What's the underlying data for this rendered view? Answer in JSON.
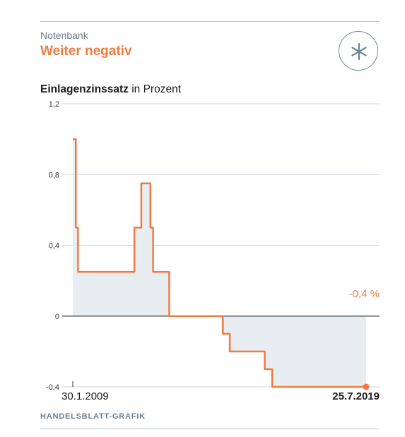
{
  "header": {
    "kicker": "Notenbank",
    "headline": "Weiter negativ",
    "subtitle_bold": "Einlagenzinssatz",
    "subtitle_rest": " in Prozent"
  },
  "icons": {
    "action": "asterisk-icon"
  },
  "footer": {
    "source": "HANDELSBLATT-GRAFIK"
  },
  "colors": {
    "line": "#ef7b42",
    "area": "#e8edf1",
    "grid": "#cfd6db",
    "zero": "#333333",
    "rule": "#b8c4cc",
    "kicker": "#6d7f8a"
  },
  "chart_data": {
    "type": "area",
    "title": "Einlagenzinssatz in Prozent",
    "y_ticks": [
      "1,2",
      "0,8",
      "0,4",
      "0",
      "-0,4"
    ],
    "y_tick_values": [
      1.2,
      0.8,
      0.4,
      0,
      -0.4
    ],
    "ylim": [
      -0.4,
      1.2
    ],
    "xlim": [
      "2009-01-30",
      "2019-07-25"
    ],
    "x_labels": [
      {
        "date": "2009-01-30",
        "label": "30.1.2009"
      },
      {
        "date": "2019-07-25",
        "label": "25.7.2019"
      }
    ],
    "grid": true,
    "annotation": {
      "text": "-0,4 %",
      "date": "2019-07-25",
      "value": -0.4
    },
    "series": [
      {
        "points": [
          [
            "2009-01-30",
            1.0
          ],
          [
            "2009-03-11",
            1.0
          ],
          [
            "2009-03-11",
            0.5
          ],
          [
            "2009-04-08",
            0.5
          ],
          [
            "2009-04-08",
            0.25
          ],
          [
            "2011-04-13",
            0.25
          ],
          [
            "2011-04-13",
            0.5
          ],
          [
            "2011-07-13",
            0.5
          ],
          [
            "2011-07-13",
            0.75
          ],
          [
            "2011-11-09",
            0.75
          ],
          [
            "2011-11-09",
            0.5
          ],
          [
            "2011-12-14",
            0.5
          ],
          [
            "2011-12-14",
            0.25
          ],
          [
            "2012-07-11",
            0.25
          ],
          [
            "2012-07-11",
            0.0
          ],
          [
            "2014-06-11",
            0.0
          ],
          [
            "2014-06-11",
            -0.1
          ],
          [
            "2014-09-10",
            -0.1
          ],
          [
            "2014-09-10",
            -0.2
          ],
          [
            "2015-12-09",
            -0.2
          ],
          [
            "2015-12-09",
            -0.3
          ],
          [
            "2016-03-16",
            -0.3
          ],
          [
            "2016-03-16",
            -0.4
          ],
          [
            "2019-07-25",
            -0.4
          ]
        ]
      }
    ]
  }
}
